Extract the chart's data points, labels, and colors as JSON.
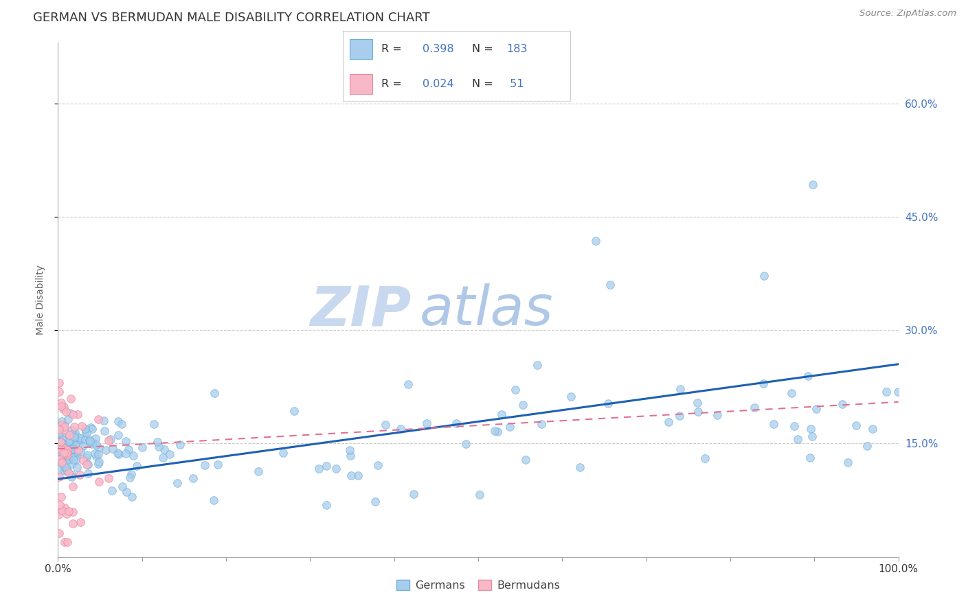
{
  "title": "GERMAN VS BERMUDAN MALE DISABILITY CORRELATION CHART",
  "source_text": "Source: ZipAtlas.com",
  "xlabel": "",
  "ylabel": "Male Disability",
  "xlim": [
    0.0,
    1.0
  ],
  "ylim": [
    0.0,
    0.68
  ],
  "xticks": [
    0.0,
    0.1,
    0.2,
    0.3,
    0.4,
    0.5,
    0.6,
    0.7,
    0.8,
    0.9,
    1.0
  ],
  "xtick_labels": [
    "0.0%",
    "",
    "",
    "",
    "",
    "",
    "",
    "",
    "",
    "",
    "100.0%"
  ],
  "ytick_right_vals": [
    0.15,
    0.3,
    0.45,
    0.6
  ],
  "ytick_right_labels": [
    "15.0%",
    "30.0%",
    "45.0%",
    "60.0%"
  ],
  "blue_color": "#A8CDED",
  "blue_edge_color": "#6AAFD6",
  "pink_color": "#F9B8C8",
  "pink_edge_color": "#E88AA0",
  "blue_trend_color": "#2060B0",
  "pink_trend_color": "#E07090",
  "blue_R": 0.398,
  "blue_N": 183,
  "pink_R": 0.024,
  "pink_N": 51,
  "watermark_ZIP": "ZIP",
  "watermark_atlas": "atlas",
  "watermark_color_ZIP": "#C8D8EE",
  "watermark_color_atlas": "#B0C8E8",
  "background_color": "#FFFFFF",
  "grid_color": "#CCCCCC",
  "legend_label_blue": "Germans",
  "legend_label_pink": "Bermudans",
  "title_color": "#333333",
  "source_color": "#888888",
  "axis_color": "#4472C4",
  "label_color": "#666666"
}
